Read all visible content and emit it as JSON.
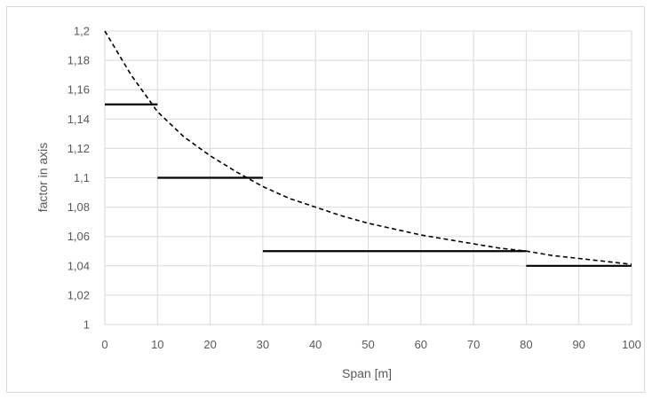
{
  "chart_data": {
    "type": "line",
    "xlabel": "Span [m]",
    "ylabel": "factor in axis",
    "xlim": [
      0,
      100
    ],
    "ylim": [
      1,
      1.2
    ],
    "x_ticks": [
      0,
      10,
      20,
      30,
      40,
      50,
      60,
      70,
      80,
      90,
      100
    ],
    "x_tick_labels": [
      "0",
      "10",
      "20",
      "30",
      "40",
      "50",
      "60",
      "70",
      "80",
      "90",
      "100"
    ],
    "y_ticks": [
      1,
      1.02,
      1.04,
      1.06,
      1.08,
      1.1,
      1.12,
      1.14,
      1.16,
      1.18,
      1.2
    ],
    "y_tick_labels": [
      "1",
      "1,02",
      "1,04",
      "1,06",
      "1,08",
      "1,1",
      "1,12",
      "1,14",
      "1,16",
      "1,18",
      "1,2"
    ],
    "grid": true,
    "legend": "none",
    "series": [
      {
        "style": "dashed",
        "color": "#000000",
        "x": [
          0,
          5,
          10,
          15,
          20,
          25,
          30,
          35,
          40,
          45,
          50,
          55,
          60,
          65,
          70,
          75,
          80,
          85,
          90,
          95,
          100
        ],
        "y": [
          1.2,
          1.17,
          1.145,
          1.128,
          1.115,
          1.104,
          1.094,
          1.086,
          1.08,
          1.074,
          1.069,
          1.065,
          1.061,
          1.058,
          1.055,
          1.052,
          1.05,
          1.047,
          1.045,
          1.043,
          1.041
        ]
      },
      {
        "style": "step-segments",
        "color": "#000000",
        "segments": [
          {
            "x": [
              0,
              10
            ],
            "y": 1.15
          },
          {
            "x": [
              10,
              30
            ],
            "y": 1.1
          },
          {
            "x": [
              30,
              80
            ],
            "y": 1.05
          },
          {
            "x": [
              80,
              100
            ],
            "y": 1.04
          }
        ]
      }
    ]
  }
}
